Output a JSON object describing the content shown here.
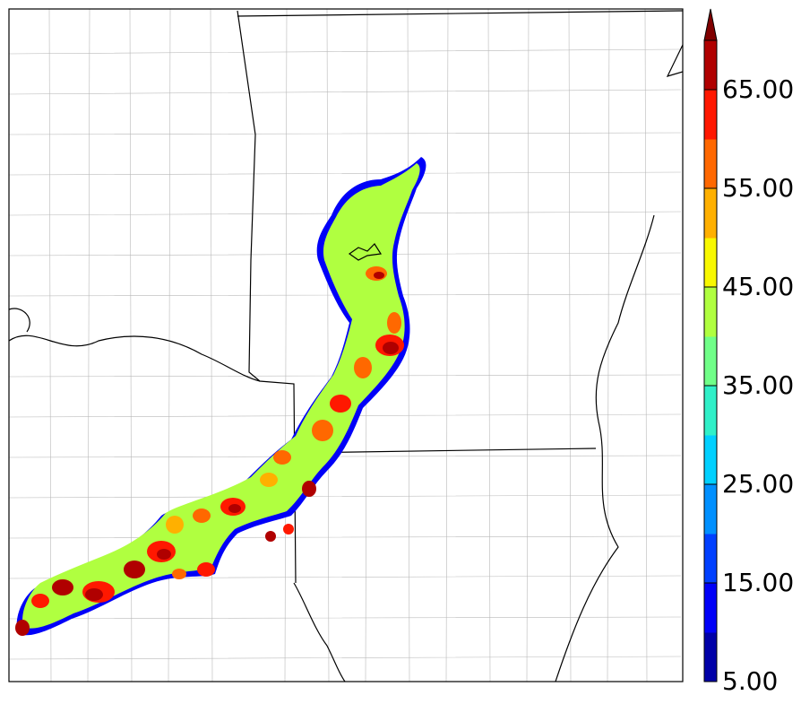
{
  "map": {
    "colorbar": {
      "min": 5,
      "max": 70,
      "extend": "max",
      "tick_labels": [
        "5.00",
        "15.00",
        "25.00",
        "35.00",
        "45.00",
        "55.00",
        "65.00"
      ],
      "levels": [
        5,
        10,
        15,
        20,
        25,
        30,
        35,
        40,
        45,
        50,
        55,
        60,
        65,
        70
      ],
      "colors": [
        "#0000a8",
        "#0000f8",
        "#0040ff",
        "#0090ff",
        "#00d0ff",
        "#30f0c8",
        "#70ff88",
        "#b0ff40",
        "#f8f800",
        "#ffb000",
        "#ff6800",
        "#ff1800",
        "#b00000"
      ],
      "extend_color": "#800000"
    },
    "colors": {
      "background": "#ffffff",
      "county_lines": "#b4b4b4",
      "state_lines": "#000000",
      "frame": "#000000"
    }
  }
}
